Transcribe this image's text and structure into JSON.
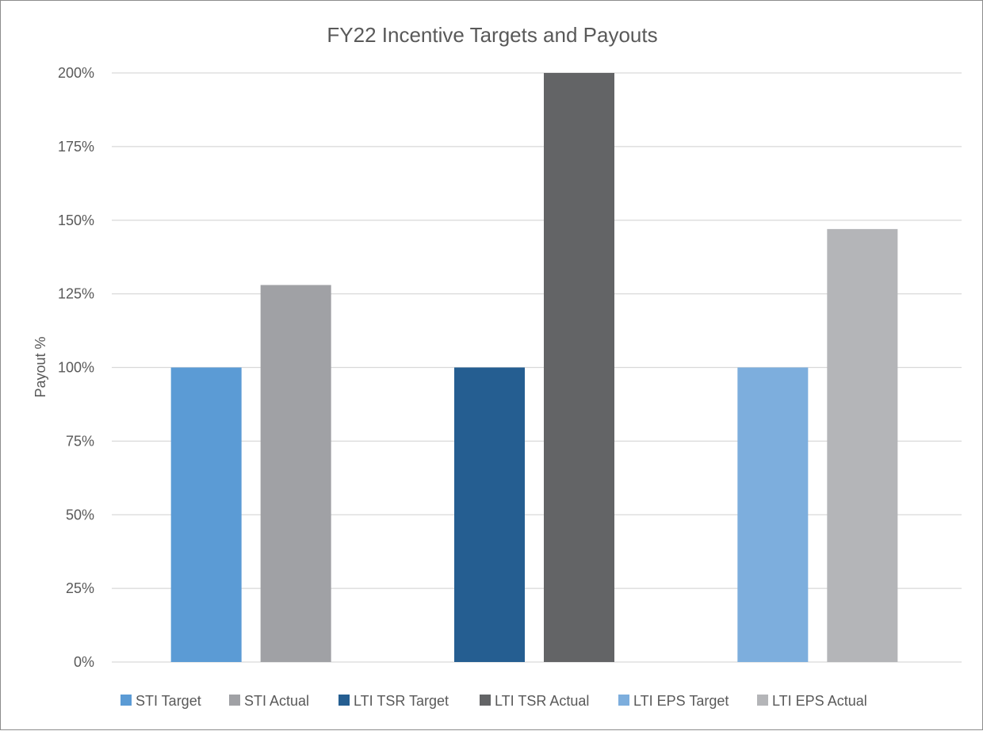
{
  "chart_data": {
    "type": "bar",
    "title": "FY22 Incentive Targets and Payouts",
    "ylabel": "Payout %",
    "xlabel": "",
    "ylim": [
      0,
      200
    ],
    "yticks": [
      0,
      25,
      50,
      75,
      100,
      125,
      150,
      175,
      200
    ],
    "ytick_labels": [
      "0%",
      "25%",
      "50%",
      "75%",
      "100%",
      "125%",
      "150%",
      "175%",
      "200%"
    ],
    "grid": true,
    "legend_position": "bottom",
    "series": [
      {
        "name": "STI Target",
        "group": 0,
        "value": 100,
        "color": "#5b9bd5"
      },
      {
        "name": "STI Actual",
        "group": 0,
        "value": 128,
        "color": "#a0a1a5"
      },
      {
        "name": "LTI TSR Target",
        "group": 1,
        "value": 100,
        "color": "#255e91"
      },
      {
        "name": "LTI TSR Actual",
        "group": 1,
        "value": 200,
        "color": "#636466"
      },
      {
        "name": "LTI EPS Target",
        "group": 2,
        "value": 100,
        "color": "#7daedd"
      },
      {
        "name": "LTI EPS Actual",
        "group": 2,
        "value": 147,
        "color": "#b4b5b8"
      }
    ]
  }
}
